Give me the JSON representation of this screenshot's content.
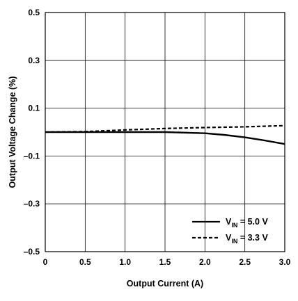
{
  "chart_data": {
    "type": "line",
    "title": "",
    "xlabel": "Output Current (A)",
    "ylabel": "Output Voltage Change (%)",
    "xlim": [
      0,
      3.0
    ],
    "ylim": [
      -0.5,
      0.5
    ],
    "x_ticks": [
      0,
      0.5,
      1.0,
      1.5,
      2.0,
      2.5,
      3.0
    ],
    "x_tick_labels": [
      "0",
      "0.5",
      "1.0",
      "1.5",
      "2.0",
      "2.5",
      "3.0"
    ],
    "y_ticks": [
      -0.5,
      -0.3,
      -0.1,
      0.1,
      0.3,
      0.5
    ],
    "y_tick_labels": [
      "–0.5",
      "–0.3",
      "–0.1",
      "0.1",
      "0.3",
      "0.5"
    ],
    "grid": true,
    "legend_position": "bottom-right",
    "series": [
      {
        "name": "VIN = 5.0 V",
        "legend_main": "V",
        "legend_sub": "IN",
        "legend_rest": " = 5.0 V",
        "style": "solid",
        "color": "#000000",
        "x": [
          0,
          0.5,
          1.0,
          1.5,
          2.0,
          2.25,
          2.5,
          2.75,
          3.0
        ],
        "y": [
          0.0,
          0.0,
          0.0,
          0.0,
          -0.005,
          -0.012,
          -0.022,
          -0.035,
          -0.05
        ]
      },
      {
        "name": "VIN = 3.3 V",
        "legend_main": "V",
        "legend_sub": "IN",
        "legend_rest": " = 3.3 V",
        "style": "dashed",
        "color": "#000000",
        "x": [
          0,
          0.5,
          1.0,
          1.5,
          2.0,
          2.5,
          3.0
        ],
        "y": [
          0.0,
          0.002,
          0.009,
          0.015,
          0.019,
          0.022,
          0.027
        ]
      }
    ]
  }
}
